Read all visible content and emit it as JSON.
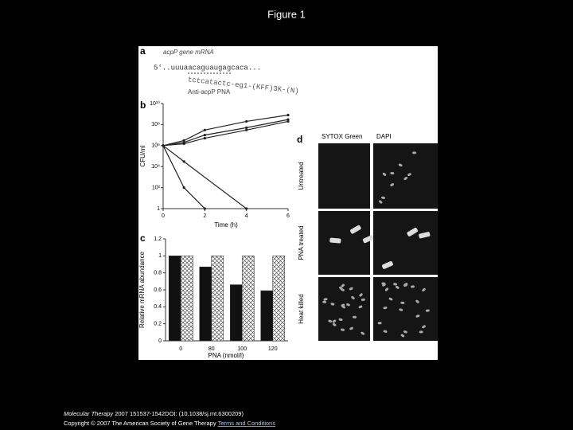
{
  "header": {
    "title": "Figure 1"
  },
  "figure": {
    "panel_a": {
      "label": "a",
      "gene": "acpP gene mRNA",
      "sequence": "5'..uuuaacaguaugagcaca...",
      "pna_sequence": "tctcatactc-eg1-(KFF)3K-(N)",
      "pna_name": "Anti-acpP PNA"
    },
    "panel_b": {
      "label": "b",
      "type": "line",
      "y_label": "CFU/ml",
      "x_label": "Time (h)",
      "log_y": true,
      "xlim": [
        0,
        6
      ],
      "xticks": [
        0,
        2,
        4,
        6
      ],
      "ylim": [
        1,
        10000000000
      ],
      "yticks": [
        {
          "value": 10000000000,
          "label": "10¹⁰"
        },
        {
          "value": 100000000,
          "label": "10⁸"
        },
        {
          "value": 1000000,
          "label": "10⁶"
        },
        {
          "value": 10000,
          "label": "10⁴"
        },
        {
          "value": 100,
          "label": "10²"
        },
        1
      ],
      "series": [
        {
          "color": "#222222",
          "x": [
            0,
            1,
            2,
            4,
            6
          ],
          "values": [
            1000000,
            3000000,
            30000000,
            200000000,
            800000000
          ]
        },
        {
          "color": "#222222",
          "x": [
            0,
            1,
            2,
            4,
            6
          ],
          "values": [
            1000000,
            2000000,
            10000000,
            50000000,
            300000000
          ]
        },
        {
          "color": "#222222",
          "x": [
            0,
            1,
            2,
            4,
            6
          ],
          "values": [
            1000000,
            1500000,
            5000000,
            30000000,
            200000000
          ]
        },
        {
          "color": "#222222",
          "x": [
            0,
            1,
            4
          ],
          "values": [
            1000000,
            30000,
            1
          ]
        },
        {
          "color": "#222222",
          "x": [
            0,
            1,
            2
          ],
          "values": [
            1000000,
            100,
            1
          ]
        }
      ]
    },
    "panel_c": {
      "label": "c",
      "type": "bar",
      "y_label": "Relative mRNA abundance",
      "x_label": "PNA (nmol/l)",
      "categories": [
        "0",
        "80",
        "100",
        "120"
      ],
      "ylim": [
        0,
        1.2
      ],
      "yticks": [
        0,
        0.2,
        0.4,
        0.6,
        0.8,
        1,
        1.2
      ],
      "series": [
        {
          "color": "#111111",
          "hatch": false,
          "values": [
            1,
            0.87,
            0.66,
            0.59
          ]
        },
        {
          "color": "#ffffff",
          "hatch": true,
          "values": [
            1,
            1,
            1,
            1
          ]
        }
      ]
    },
    "panel_d": {
      "label": "d",
      "columns": [
        "SYTOX Green",
        "DAPI"
      ],
      "rows": [
        "Untreated",
        "PNA treated",
        "Heat killed"
      ]
    }
  },
  "footer": {
    "journal": "Molecular Therapy",
    "citation": " 2007 151537-1542DOI: (10.1038/sj.mt.6300209)",
    "copyright": "Copyright © 2007 The American Society of Gene Therapy",
    "link": "Terms and Conditions"
  }
}
